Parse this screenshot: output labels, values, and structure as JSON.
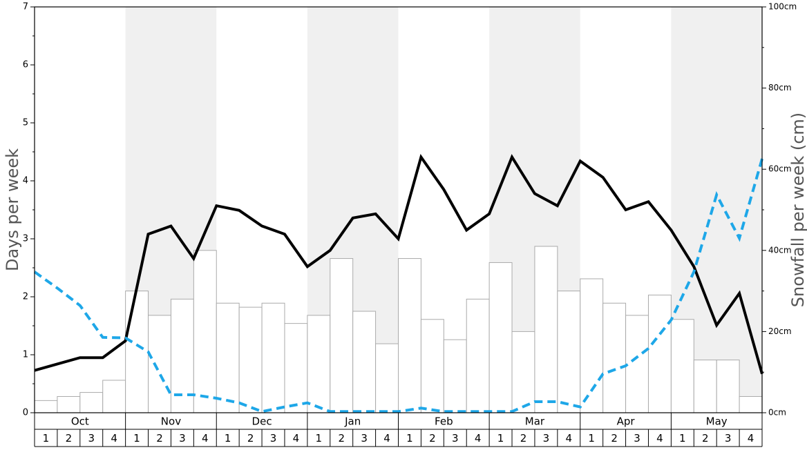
{
  "chart_data": {
    "type": "bar",
    "ylabel": "Days per week",
    "y2label": "Snowfall per week (cm)",
    "ylim": [
      0,
      7
    ],
    "y2lim": [
      0,
      100
    ],
    "yticks": [
      "0",
      "1",
      "2",
      "3",
      "4",
      "5",
      "6",
      "7"
    ],
    "y2ticks": [
      "0cm",
      "20cm",
      "40cm",
      "60cm",
      "80cm",
      "100cm"
    ],
    "months": [
      "Oct",
      "Nov",
      "Dec",
      "Jan",
      "Feb",
      "Mar",
      "Apr",
      "May"
    ],
    "weeks": [
      "1",
      "2",
      "3",
      "4"
    ],
    "shaded_months": [
      "Nov",
      "Jan",
      "Mar",
      "May"
    ],
    "grid": false,
    "colors": {
      "bars_fill": "#ffffff",
      "bars_edge": "#aaaaaa",
      "shading": "#f0f0f0",
      "days_line": "#000000",
      "snow_line": "#1ea7e8",
      "axis_label": "#555555"
    },
    "series": [
      {
        "style": "bars",
        "axis": "right",
        "values": [
          3,
          4,
          5,
          8,
          30,
          24,
          28,
          40,
          27,
          26,
          27,
          22,
          24,
          38,
          25,
          17,
          38,
          23,
          18,
          28,
          37,
          20,
          41,
          30,
          33,
          27,
          24,
          29,
          23,
          13,
          13,
          4
        ]
      },
      {
        "style": "solid-line",
        "axis": "left",
        "values": [
          0.73,
          0.84,
          0.95,
          0.95,
          1.24,
          3.08,
          3.22,
          2.66,
          3.57,
          3.49,
          3.22,
          3.08,
          2.52,
          2.8,
          3.36,
          3.43,
          3.0,
          4.41,
          3.85,
          3.15,
          3.43,
          4.41,
          3.78,
          3.57,
          4.34,
          4.06,
          3.5,
          3.64,
          3.15,
          2.52,
          1.51,
          2.06,
          0.67
        ]
      },
      {
        "style": "dashed-line",
        "axis": "left",
        "values": [
          2.43,
          2.15,
          1.85,
          1.3,
          1.29,
          1.05,
          0.31,
          0.31,
          0.25,
          0.17,
          0.02,
          0.1,
          0.17,
          0.02,
          0.02,
          0.02,
          0.02,
          0.08,
          0.02,
          0.02,
          0.02,
          0.02,
          0.19,
          0.19,
          0.1,
          0.67,
          0.81,
          1.11,
          1.6,
          2.43,
          3.76,
          3.01,
          4.38
        ]
      }
    ]
  }
}
